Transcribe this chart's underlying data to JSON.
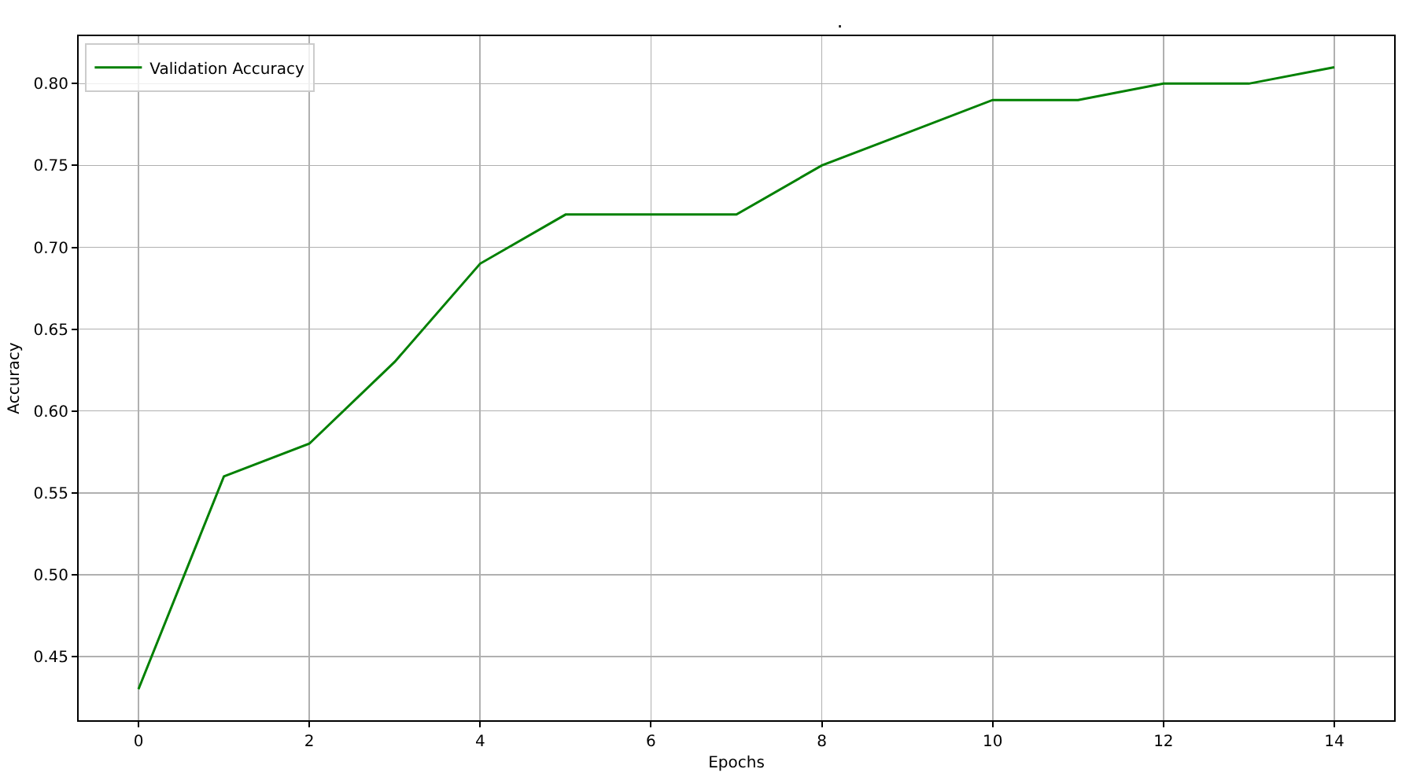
{
  "chart_data": {
    "type": "line",
    "title": ".",
    "xlabel": "Epochs",
    "ylabel": "Accuracy",
    "x": [
      0,
      1,
      2,
      3,
      4,
      5,
      6,
      7,
      8,
      9,
      10,
      11,
      12,
      13,
      14
    ],
    "series": [
      {
        "name": "Validation Accuracy",
        "color": "#008000",
        "values": [
          0.43,
          0.56,
          0.58,
          0.63,
          0.69,
          0.72,
          0.72,
          0.72,
          0.75,
          0.77,
          0.79,
          0.79,
          0.8,
          0.8,
          0.81
        ]
      }
    ],
    "xlim": [
      -0.7,
      14.7
    ],
    "xticks": [
      0,
      2,
      4,
      6,
      8,
      10,
      12,
      14
    ],
    "ylim": [
      0.411,
      0.829
    ],
    "yticks": [
      0.45,
      {
        "value": 0.5,
        "label": "0.50"
      },
      0.55,
      {
        "value": 0.6,
        "label": "0.60"
      },
      0.65,
      {
        "value": 0.7,
        "label": "0.70"
      },
      0.75,
      {
        "value": 0.8,
        "label": "0.80"
      }
    ],
    "grid": true,
    "legend": "top left",
    "marker": "none",
    "line_style": "solid"
  }
}
